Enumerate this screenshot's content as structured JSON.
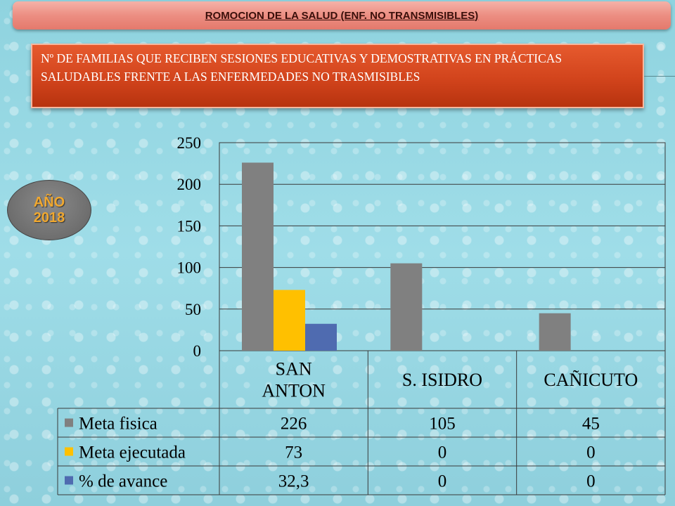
{
  "header": {
    "title": "ROMOCION DE LA SALUD  (ENF. NO TRANSMISIBLES)"
  },
  "subtitle": "Nº  DE FAMILIAS QUE RECIBEN SESIONES EDUCATIVAS Y DEMOSTRATIVAS EN PRÁCTICAS SALUDABLES FRENTE A LAS ENFERMEDADES NO TRASMISIBLES",
  "badge": {
    "line1": "AÑO",
    "line2": "2018"
  },
  "chart_data": {
    "type": "bar",
    "categories": [
      [
        "SAN",
        "ANTON"
      ],
      [
        "S. ISIDRO"
      ],
      [
        "CAÑICUTO"
      ]
    ],
    "series": [
      {
        "name": "Meta fisica",
        "color": "#808080",
        "values": [
          226,
          105,
          45
        ],
        "labels": [
          "226",
          "105",
          "45"
        ]
      },
      {
        "name": "Meta ejecutada",
        "color": "#ffc000",
        "values": [
          73,
          0,
          0
        ],
        "labels": [
          "73",
          "0",
          "0"
        ]
      },
      {
        "name": "% de avance",
        "color": "#4f6bb0",
        "values": [
          32.3,
          0,
          0
        ],
        "labels": [
          "32,3",
          "0",
          "0"
        ]
      }
    ],
    "ylim": [
      0,
      250
    ],
    "yticks": [
      0,
      50,
      100,
      150,
      200,
      250
    ],
    "grid": true,
    "legend": "data-table"
  }
}
